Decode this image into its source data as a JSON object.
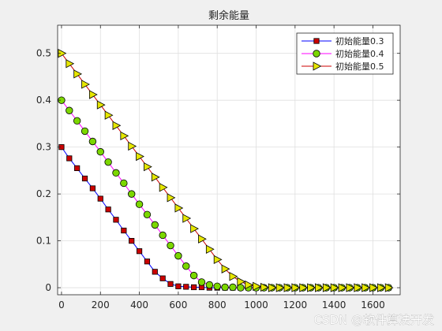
{
  "watermark": "CSDN @软件算法开发",
  "chart_data": {
    "type": "line",
    "title": "剩余能量",
    "xlabel": "",
    "ylabel": "",
    "xlim": [
      -20,
      1740
    ],
    "ylim": [
      -0.015,
      0.56
    ],
    "xticks": [
      0,
      200,
      400,
      600,
      800,
      1000,
      1200,
      1400,
      1600
    ],
    "yticks": [
      0,
      0.1,
      0.2,
      0.3,
      0.4,
      0.5
    ],
    "grid": true,
    "legend_position": "top-right",
    "x": [
      0,
      40,
      80,
      120,
      160,
      200,
      240,
      280,
      320,
      360,
      400,
      440,
      480,
      520,
      560,
      600,
      640,
      680,
      720,
      760,
      800,
      840,
      880,
      920,
      960,
      1000,
      1040,
      1080,
      1120,
      1160,
      1200,
      1240,
      1280,
      1320,
      1360,
      1400,
      1440,
      1480,
      1520,
      1560,
      1600,
      1640,
      1680
    ],
    "series": [
      {
        "name": "初始能量0.3",
        "line_color": "#0000ff",
        "marker": "square",
        "marker_color": "#cc0000",
        "values": [
          0.3,
          0.276,
          0.255,
          0.233,
          0.212,
          0.19,
          0.167,
          0.145,
          0.122,
          0.1,
          0.078,
          0.056,
          0.034,
          0.02,
          0.008,
          0.003,
          0.002,
          0.001,
          0.001,
          0,
          0,
          0,
          0,
          0,
          0,
          0,
          0,
          0,
          0,
          0,
          0,
          0,
          0,
          0,
          0,
          0,
          0,
          0,
          0,
          0,
          0,
          0,
          0
        ]
      },
      {
        "name": "初始能量0.4",
        "line_color": "#ff00ff",
        "marker": "circle",
        "marker_color": "#7cd700",
        "values": [
          0.4,
          0.378,
          0.356,
          0.334,
          0.312,
          0.29,
          0.268,
          0.245,
          0.223,
          0.2,
          0.178,
          0.156,
          0.134,
          0.112,
          0.09,
          0.068,
          0.046,
          0.026,
          0.012,
          0.006,
          0.003,
          0.001,
          0.001,
          0,
          0,
          0,
          0,
          0,
          0,
          0,
          0,
          0,
          0,
          0,
          0,
          0,
          0,
          0,
          0,
          0,
          0,
          0,
          0
        ]
      },
      {
        "name": "初始能量0.5",
        "line_color": "#cc0000",
        "marker": "triangle-right",
        "marker_color": "#e6e600",
        "values": [
          0.5,
          0.478,
          0.456,
          0.434,
          0.412,
          0.39,
          0.368,
          0.346,
          0.324,
          0.302,
          0.28,
          0.258,
          0.236,
          0.214,
          0.192,
          0.17,
          0.148,
          0.126,
          0.104,
          0.082,
          0.06,
          0.04,
          0.024,
          0.013,
          0.006,
          0.003,
          0.001,
          0,
          0,
          0,
          0,
          0,
          0,
          0,
          0,
          0,
          0,
          0,
          0,
          0,
          0,
          0,
          0
        ]
      }
    ]
  }
}
